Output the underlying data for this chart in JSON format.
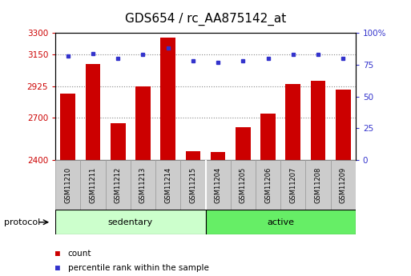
{
  "title": "GDS654 / rc_AA875142_at",
  "samples": [
    "GSM11210",
    "GSM11211",
    "GSM11212",
    "GSM11213",
    "GSM11214",
    "GSM11215",
    "GSM11204",
    "GSM11205",
    "GSM11206",
    "GSM11207",
    "GSM11208",
    "GSM11209"
  ],
  "counts": [
    2870,
    3080,
    2660,
    2925,
    3270,
    2465,
    2460,
    2635,
    2730,
    2940,
    2960,
    2900
  ],
  "percentile_ranks": [
    82,
    84,
    80,
    83,
    88,
    78,
    77,
    78,
    80,
    83,
    83,
    80
  ],
  "bar_color": "#cc0000",
  "dot_color": "#3333cc",
  "ylim_left": [
    2400,
    3300
  ],
  "ylim_right": [
    0,
    100
  ],
  "yticks_left": [
    2400,
    2700,
    2925,
    3150,
    3300
  ],
  "yticks_right": [
    0,
    25,
    50,
    75,
    100
  ],
  "ytick_labels_left": [
    "2400",
    "2700",
    "2925",
    "3150",
    "3300"
  ],
  "ytick_labels_right": [
    "0",
    "25",
    "50",
    "75",
    "100%"
  ],
  "hlines": [
    2700,
    2925,
    3150
  ],
  "groups": [
    {
      "label": "sedentary",
      "start": 0,
      "end": 6,
      "color": "#ccffcc"
    },
    {
      "label": "active",
      "start": 6,
      "end": 12,
      "color": "#66ee66"
    }
  ],
  "protocol_label": "protocol",
  "legend_items": [
    {
      "label": "count",
      "color": "#cc0000"
    },
    {
      "label": "percentile rank within the sample",
      "color": "#3333cc"
    }
  ],
  "background_color": "#ffffff",
  "tick_label_color_left": "#cc0000",
  "tick_label_color_right": "#3333cc",
  "title_fontsize": 11,
  "bar_width": 0.6,
  "xtick_bg_color": "#cccccc"
}
